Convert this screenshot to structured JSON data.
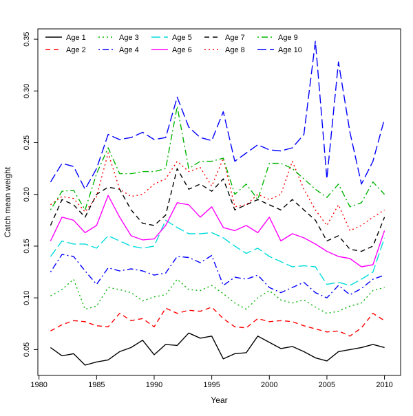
{
  "figure": {
    "xlabel": "Year",
    "ylabel": "Catch mean weight"
  },
  "chart_data": {
    "type": "line",
    "title": "",
    "xlabel": "Year",
    "ylabel": "Catch mean weight",
    "grid": false,
    "legend_position": "inside-top-left, 2 rows x 5 columns, column-major",
    "xlim": [
      1980,
      2011
    ],
    "ylim": [
      0.03,
      0.355
    ],
    "x_ticks": {
      "values": [
        1980,
        1985,
        1990,
        1995,
        2000,
        2005,
        2010
      ],
      "labels": [
        "1980",
        "1985",
        "1990",
        "1995",
        "2000",
        "2005",
        "2010"
      ]
    },
    "y_ticks": {
      "values": [
        0.05,
        0.1,
        0.15,
        0.2,
        0.25,
        0.3,
        0.35
      ],
      "labels": [
        "0.05",
        "0.10",
        "0.15",
        "0.20",
        "0.25",
        "0.30",
        "0.35"
      ]
    },
    "x": [
      1981,
      1982,
      1983,
      1984,
      1985,
      1986,
      1987,
      1988,
      1989,
      1990,
      1991,
      1992,
      1993,
      1994,
      1995,
      1996,
      1997,
      1998,
      1999,
      2000,
      2001,
      2002,
      2003,
      2004,
      2005,
      2006,
      2007,
      2008,
      2009,
      2010
    ],
    "series": [
      {
        "name": "Age 1",
        "color": "#000000",
        "linetype": "solid",
        "values": [
          0.052,
          0.044,
          0.046,
          0.035,
          0.038,
          0.04,
          0.048,
          0.052,
          0.059,
          0.045,
          0.055,
          0.054,
          0.066,
          0.061,
          0.063,
          0.041,
          0.046,
          0.047,
          0.063,
          0.057,
          0.051,
          0.053,
          0.048,
          0.042,
          0.039,
          0.048,
          0.05,
          0.052,
          0.055,
          0.052
        ]
      },
      {
        "name": "Age 2",
        "color": "#ff0000",
        "linetype": "dashed",
        "values": [
          0.068,
          0.074,
          0.078,
          0.077,
          0.073,
          0.072,
          0.085,
          0.078,
          0.08,
          0.072,
          0.09,
          0.085,
          0.088,
          0.087,
          0.091,
          0.08,
          0.072,
          0.071,
          0.08,
          0.077,
          0.078,
          0.077,
          0.073,
          0.07,
          0.067,
          0.068,
          0.063,
          0.071,
          0.085,
          0.078
        ]
      },
      {
        "name": "Age 3",
        "color": "#00b400",
        "linetype": "dotted",
        "values": [
          0.102,
          0.108,
          0.118,
          0.089,
          0.092,
          0.11,
          0.108,
          0.105,
          0.097,
          0.101,
          0.103,
          0.118,
          0.108,
          0.107,
          0.112,
          0.104,
          0.095,
          0.089,
          0.1,
          0.107,
          0.098,
          0.095,
          0.098,
          0.091,
          0.085,
          0.087,
          0.092,
          0.095,
          0.107,
          0.11
        ]
      },
      {
        "name": "Age 4",
        "color": "#0000ff",
        "linetype": "dotdash",
        "values": [
          0.125,
          0.142,
          0.14,
          0.126,
          0.113,
          0.129,
          0.126,
          0.128,
          0.126,
          0.122,
          0.124,
          0.14,
          0.139,
          0.134,
          0.141,
          0.112,
          0.12,
          0.118,
          0.122,
          0.11,
          0.105,
          0.11,
          0.115,
          0.105,
          0.1,
          0.112,
          0.103,
          0.109,
          0.118,
          0.122
        ]
      },
      {
        "name": "Age 5",
        "color": "#00dcdc",
        "linetype": "longdash",
        "values": [
          0.14,
          0.155,
          0.152,
          0.152,
          0.148,
          0.16,
          0.155,
          0.15,
          0.148,
          0.15,
          0.175,
          0.168,
          0.162,
          0.162,
          0.163,
          0.158,
          0.15,
          0.143,
          0.148,
          0.14,
          0.135,
          0.13,
          0.131,
          0.13,
          0.113,
          0.115,
          0.112,
          0.118,
          0.125,
          0.158
        ]
      },
      {
        "name": "Age 6",
        "color": "#ff00ff",
        "linetype": "solid",
        "values": [
          0.155,
          0.178,
          0.175,
          0.163,
          0.17,
          0.199,
          0.178,
          0.16,
          0.156,
          0.157,
          0.17,
          0.192,
          0.19,
          0.178,
          0.188,
          0.168,
          0.165,
          0.17,
          0.163,
          0.178,
          0.155,
          0.162,
          0.158,
          0.152,
          0.145,
          0.14,
          0.138,
          0.13,
          0.132,
          0.165
        ]
      },
      {
        "name": "Age 7",
        "color": "#000000",
        "linetype": "dashed",
        "values": [
          0.17,
          0.195,
          0.19,
          0.178,
          0.2,
          0.207,
          0.205,
          0.185,
          0.172,
          0.17,
          0.18,
          0.225,
          0.205,
          0.21,
          0.203,
          0.215,
          0.185,
          0.19,
          0.195,
          0.19,
          0.185,
          0.195,
          0.185,
          0.175,
          0.155,
          0.16,
          0.147,
          0.145,
          0.15,
          0.178
        ]
      },
      {
        "name": "Age 8",
        "color": "#ff0000",
        "linetype": "dotted",
        "values": [
          0.19,
          0.198,
          0.196,
          0.183,
          0.198,
          0.24,
          0.205,
          0.198,
          0.2,
          0.21,
          0.215,
          0.232,
          0.222,
          0.226,
          0.208,
          0.235,
          0.188,
          0.19,
          0.2,
          0.195,
          0.2,
          0.232,
          0.205,
          0.185,
          0.17,
          0.19,
          0.165,
          0.17,
          0.178,
          0.185
        ]
      },
      {
        "name": "Age 9",
        "color": "#00b400",
        "linetype": "dotdash",
        "values": [
          0.185,
          0.203,
          0.204,
          0.185,
          0.22,
          0.245,
          0.22,
          0.22,
          0.222,
          0.222,
          0.225,
          0.285,
          0.225,
          0.232,
          0.232,
          0.235,
          0.2,
          0.21,
          0.195,
          0.23,
          0.23,
          0.225,
          0.215,
          0.205,
          0.197,
          0.21,
          0.188,
          0.192,
          0.212,
          0.2
        ]
      },
      {
        "name": "Age 10",
        "color": "#0000ff",
        "linetype": "longdash",
        "values": [
          0.212,
          0.23,
          0.227,
          0.205,
          0.225,
          0.258,
          0.253,
          0.255,
          0.26,
          0.253,
          0.255,
          0.294,
          0.265,
          0.255,
          0.252,
          0.28,
          0.232,
          0.24,
          0.248,
          0.243,
          0.242,
          0.245,
          0.258,
          0.348,
          0.215,
          0.328,
          0.26,
          0.21,
          0.232,
          0.273
        ]
      }
    ]
  }
}
